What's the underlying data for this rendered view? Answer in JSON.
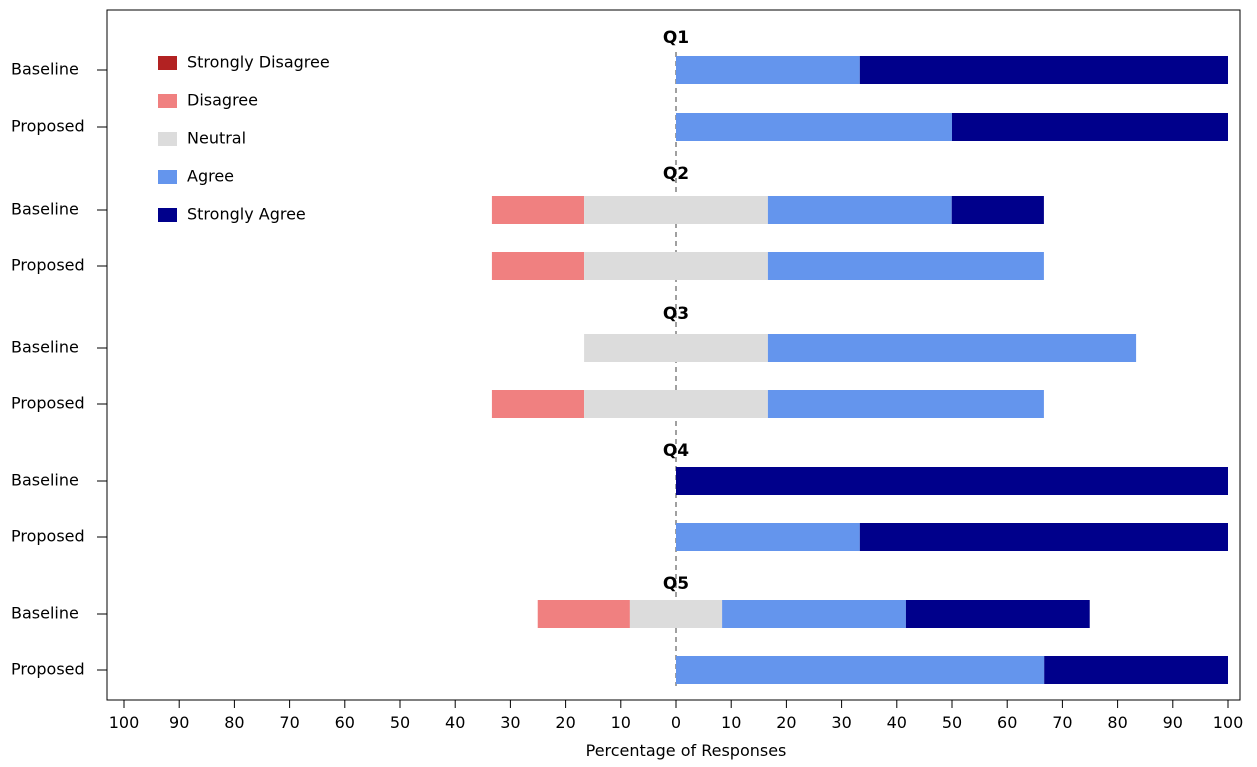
{
  "chart_data": {
    "type": "bar",
    "orientation": "horizontal-diverging",
    "xlabel": "Percentage of Responses",
    "x_ticks": [
      "100",
      "90",
      "80",
      "70",
      "60",
      "50",
      "40",
      "30",
      "20",
      "10",
      "0",
      "10",
      "20",
      "30",
      "40",
      "50",
      "60",
      "70",
      "80",
      "90",
      "100"
    ],
    "xlim": [
      -100,
      100
    ],
    "categories_legend": [
      "Strongly Disagree",
      "Disagree",
      "Neutral",
      "Agree",
      "Strongly Agree"
    ],
    "colors": {
      "Strongly Disagree": "#b22222",
      "Disagree": "#f08080",
      "Neutral": "#dcdcdc",
      "Agree": "#6495ed",
      "Strongly Agree": "#00008b"
    },
    "legend_position": "top-left",
    "groups": [
      {
        "title": "Q1",
        "rows": [
          {
            "label": "Baseline",
            "strongly_disagree": 0,
            "disagree": 0,
            "neutral": 0,
            "agree": 33.3,
            "strongly_agree": 66.7
          },
          {
            "label": "Proposed",
            "strongly_disagree": 0,
            "disagree": 0,
            "neutral": 0,
            "agree": 50,
            "strongly_agree": 50
          }
        ]
      },
      {
        "title": "Q2",
        "rows": [
          {
            "label": "Baseline",
            "strongly_disagree": 0,
            "disagree": 16.7,
            "neutral": 33.3,
            "agree": 33.3,
            "strongly_agree": 16.7
          },
          {
            "label": "Proposed",
            "strongly_disagree": 0,
            "disagree": 16.7,
            "neutral": 33.3,
            "agree": 50,
            "strongly_agree": 0
          }
        ]
      },
      {
        "title": "Q3",
        "rows": [
          {
            "label": "Baseline",
            "strongly_disagree": 0,
            "disagree": 0,
            "neutral": 33.3,
            "agree": 66.7,
            "strongly_agree": 0
          },
          {
            "label": "Proposed",
            "strongly_disagree": 0,
            "disagree": 16.7,
            "neutral": 33.3,
            "agree": 50,
            "strongly_agree": 0
          }
        ]
      },
      {
        "title": "Q4",
        "rows": [
          {
            "label": "Baseline",
            "strongly_disagree": 0,
            "disagree": 0,
            "neutral": 0,
            "agree": 0,
            "strongly_agree": 100
          },
          {
            "label": "Proposed",
            "strongly_disagree": 0,
            "disagree": 0,
            "neutral": 0,
            "agree": 33.3,
            "strongly_agree": 66.7
          }
        ]
      },
      {
        "title": "Q5",
        "rows": [
          {
            "label": "Baseline",
            "strongly_disagree": 0,
            "disagree": 16.7,
            "neutral": 16.7,
            "agree": 33.3,
            "strongly_agree": 33.3
          },
          {
            "label": "Proposed",
            "strongly_disagree": 0,
            "disagree": 0,
            "neutral": 0,
            "agree": 66.7,
            "strongly_agree": 33.3
          }
        ]
      }
    ]
  }
}
